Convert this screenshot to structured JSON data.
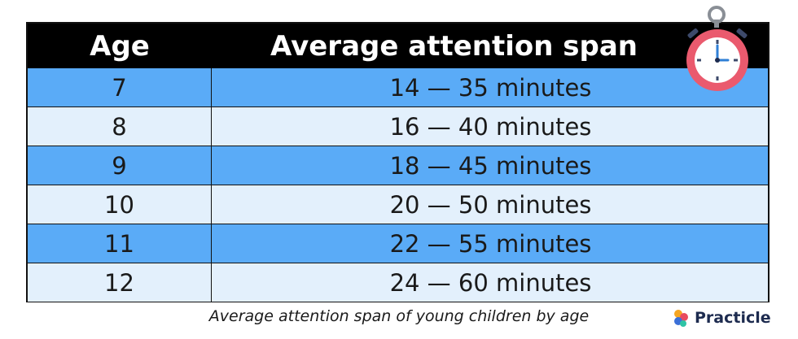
{
  "table": {
    "headers": {
      "age": "Age",
      "span": "Average attention span"
    },
    "rows": [
      {
        "age": "7",
        "span": "14 — 35 minutes",
        "shade": "dark"
      },
      {
        "age": "8",
        "span": "16 — 40 minutes",
        "shade": "light"
      },
      {
        "age": "9",
        "span": "18 — 45 minutes",
        "shade": "dark"
      },
      {
        "age": "10",
        "span": "20 — 50 minutes",
        "shade": "light"
      },
      {
        "age": "11",
        "span": "22 — 55 minutes",
        "shade": "dark"
      },
      {
        "age": "12",
        "span": "24 — 60 minutes",
        "shade": "light"
      }
    ]
  },
  "caption": "Average attention span of young children by age",
  "brand": {
    "name": "Practicle",
    "icon": "practicle-logo-icon"
  },
  "decoration": {
    "icon": "stopwatch-icon"
  },
  "colors": {
    "header_bg": "#000000",
    "row_dark": "#5aabf7",
    "row_light": "#e3f0fc",
    "stopwatch_body": "#ea5a6e"
  }
}
